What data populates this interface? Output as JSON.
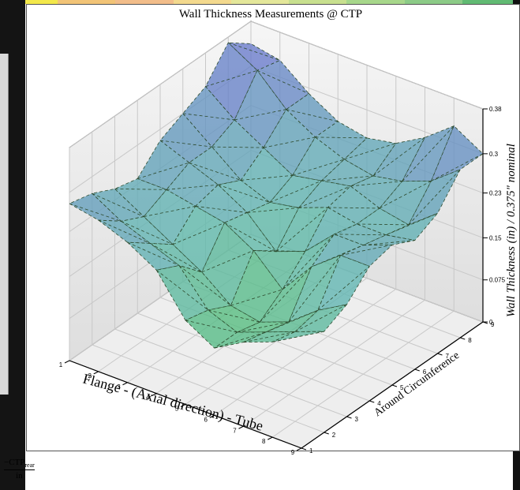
{
  "chart_data": {
    "type": "surface3d",
    "title": "Wall Thickness Measurements @ CTP",
    "xlabel": "Flange - (Axial direction) - Tube",
    "ylabel": "Around Circumference",
    "zlabel": "Wall Thickness (in) / 0.375\" nominal",
    "x_ticks": [
      "1",
      "2",
      "3",
      "4",
      "5",
      "6",
      "7",
      "8",
      "9"
    ],
    "y_ticks": [
      "1",
      "2",
      "3",
      "4",
      "5",
      "6",
      "7",
      "8",
      "9"
    ],
    "z_ticks": [
      "0",
      "0.075",
      "0.15",
      "0.23",
      "0.3",
      "0.38"
    ],
    "zlim": [
      0,
      0.38
    ],
    "grid": true,
    "surface_z": [
      [
        0.28,
        0.27,
        0.25,
        0.22,
        0.15,
        0.12,
        0.15,
        0.17,
        0.2
      ],
      [
        0.27,
        0.24,
        0.22,
        0.2,
        0.14,
        0.12,
        0.14,
        0.16,
        0.18
      ],
      [
        0.25,
        0.22,
        0.19,
        0.16,
        0.12,
        0.11,
        0.13,
        0.17,
        0.2
      ],
      [
        0.24,
        0.24,
        0.23,
        0.22,
        0.19,
        0.14,
        0.2,
        0.24,
        0.24
      ],
      [
        0.28,
        0.26,
        0.24,
        0.21,
        0.16,
        0.18,
        0.23,
        0.23,
        0.25
      ],
      [
        0.3,
        0.26,
        0.22,
        0.2,
        0.21,
        0.23,
        0.22,
        0.22,
        0.23
      ],
      [
        0.32,
        0.28,
        0.25,
        0.22,
        0.23,
        0.24,
        0.22,
        0.21,
        0.25
      ],
      [
        0.37,
        0.34,
        0.29,
        0.26,
        0.24,
        0.23,
        0.24,
        0.26,
        0.3
      ],
      [
        0.34,
        0.33,
        0.29,
        0.26,
        0.25,
        0.26,
        0.29,
        0.33,
        0.3
      ]
    ]
  },
  "colors": {
    "low": "#44c33a",
    "mid": "#5fb7b0",
    "high": "#6a6ad2",
    "band": [
      "#f3e84a",
      "#f2c477",
      "#f2bd8a",
      "#f3d98e",
      "#e4e79a",
      "#c8e08f",
      "#a7d78b",
      "#8ccb87",
      "#61ba73"
    ]
  },
  "footer": {
    "numerator": "−CTP",
    "subscript": "rear",
    "denominator": "in"
  }
}
